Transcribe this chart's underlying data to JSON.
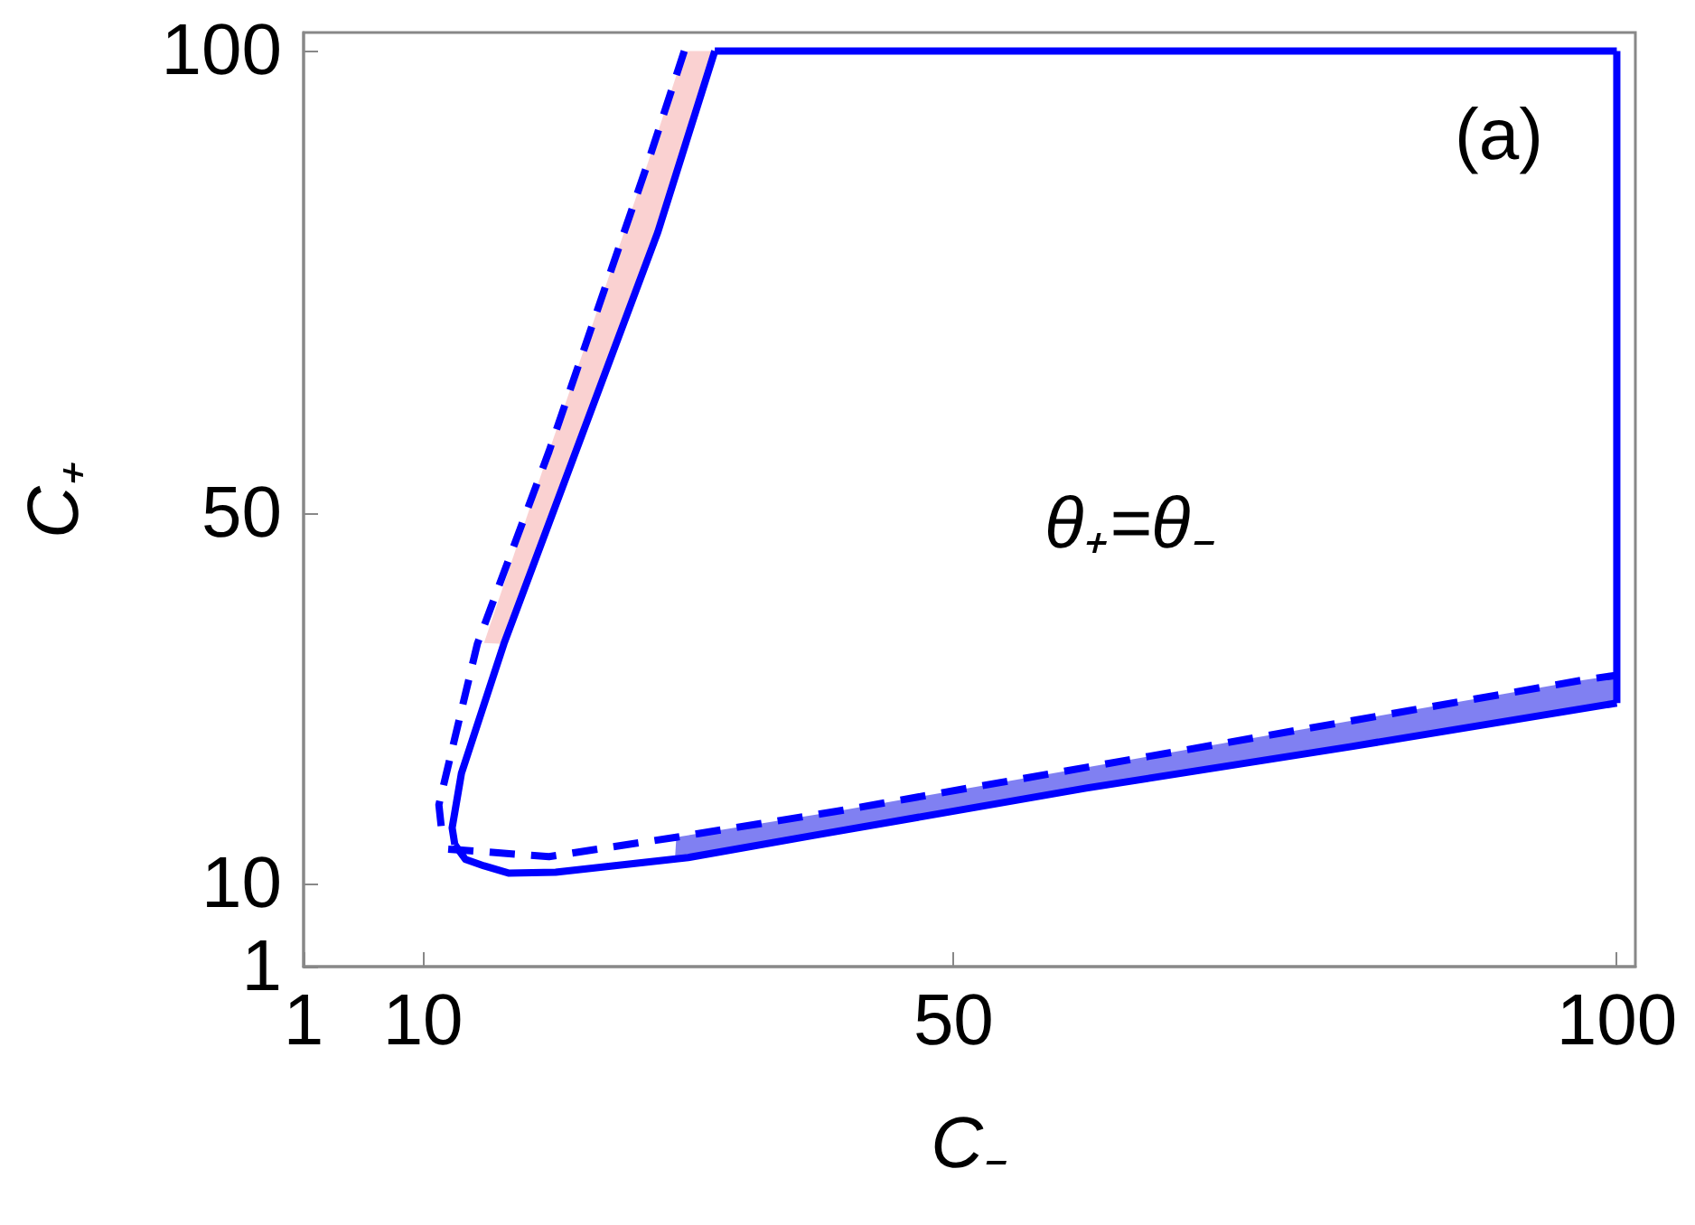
{
  "chart_data": {
    "type": "line",
    "xlabel": "C₋",
    "ylabel": "C₊",
    "xlim": [
      1,
      101.4
    ],
    "ylim": [
      1,
      102
    ],
    "xticks": [
      1,
      10,
      50,
      100
    ],
    "yticks": [
      1,
      10,
      50,
      100
    ],
    "marker": "none",
    "annotations": [
      "(a)",
      "θ₊=θ₋"
    ],
    "series": [
      {
        "type": "area",
        "color": "#f9c9c9",
        "x": [
          29.7,
          27,
          19.5,
          14.6,
          16.1,
          27.7,
          32
        ],
        "values": [
          100,
          88.1,
          56.7,
          36,
          35.9,
          80.4,
          100
        ]
      },
      {
        "type": "area",
        "color": "#6a6af0",
        "x": [
          29.1,
          41.2,
          97.5,
          100,
          100,
          60,
          39.5,
          29
        ],
        "values": [
          15,
          17.8,
          32,
          32.5,
          29.5,
          20.3,
          15.2,
          12.7
        ]
      },
      {
        "type": "line",
        "color": "#0000ff",
        "line_style": "solid",
        "x": [
          32,
          27.7,
          16.1,
          12.9,
          12.2,
          12.4
        ],
        "values": [
          100,
          80.4,
          35.9,
          21.9,
          16,
          14.2
        ]
      },
      {
        "type": "line",
        "color": "#0000ff",
        "line_style": "solid",
        "x": [
          12.4,
          13.2,
          14.6,
          16.5,
          20,
          30,
          39.5,
          60,
          80,
          100
        ],
        "values": [
          14.2,
          12.6,
          11.9,
          11.1,
          11.2,
          12.8,
          15.2,
          20.3,
          24.8,
          29.5
        ]
      },
      {
        "type": "line",
        "color": "#0000ff",
        "line_style": "solid",
        "x": [
          100,
          100
        ],
        "values": [
          29.5,
          100
        ]
      },
      {
        "type": "line",
        "color": "#0000ff",
        "line_style": "solid",
        "x": [
          32,
          100
        ],
        "values": [
          100,
          100
        ]
      },
      {
        "type": "line",
        "color": "#0000ff",
        "line_style": "dashed",
        "x": [
          29.7,
          27,
          19.5,
          14.1,
          11.2,
          11.5
        ],
        "values": [
          100,
          88.1,
          56.7,
          35.9,
          18.5,
          14.5
        ]
      },
      {
        "type": "line",
        "color": "#0000ff",
        "line_style": "dashed",
        "x": [
          11.9,
          19.5,
          29.1,
          41.2,
          97.5,
          100
        ],
        "values": [
          13.7,
          12.9,
          15,
          17.8,
          32,
          32.5
        ]
      }
    ]
  }
}
